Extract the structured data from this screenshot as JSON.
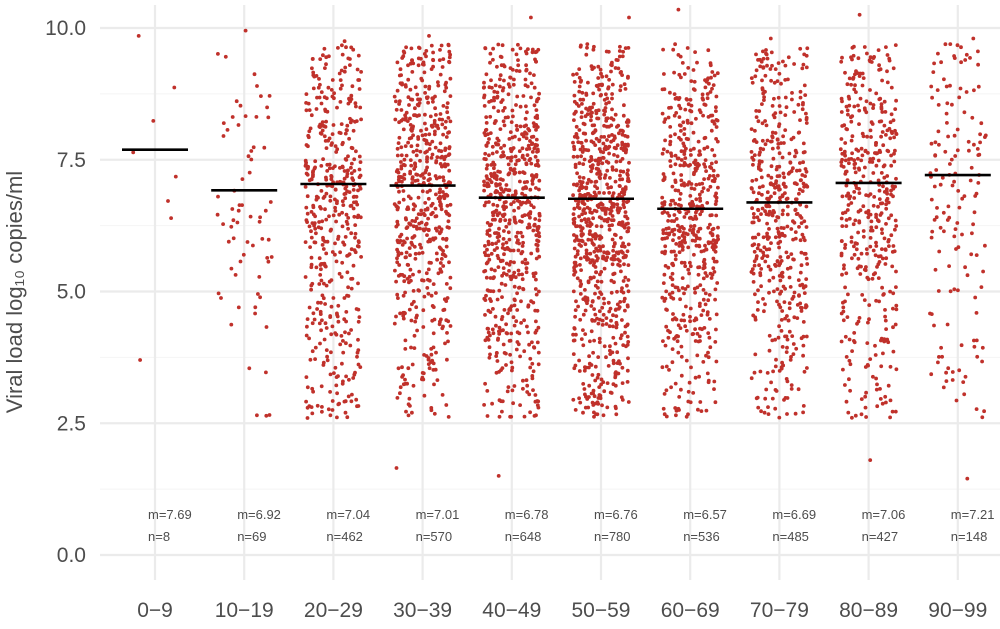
{
  "chart_data": {
    "type": "scatter",
    "ylabel": "Viral load log₁₀ copies/ml",
    "ylim": [
      0,
      10
    ],
    "y_ticks": [
      "0.0",
      "2.5",
      "5.0",
      "7.5",
      "10.0"
    ],
    "grid": true,
    "point_color": "#c0312b",
    "median_line_color": "#000000",
    "categories": [
      "0−9",
      "10−19",
      "20−29",
      "30−39",
      "40−49",
      "50−59",
      "60−69",
      "70−79",
      "80−89",
      "90−99"
    ],
    "groups": [
      {
        "label": "0−9",
        "median": 7.69,
        "n": 8,
        "m_text": "m=7.69",
        "n_text": "n=8",
        "min": 3.7,
        "max": 9.85
      },
      {
        "label": "10−19",
        "median": 6.92,
        "n": 69,
        "m_text": "m=6.92",
        "n_text": "n=69",
        "min": 2.65,
        "max": 9.95
      },
      {
        "label": "20−29",
        "median": 7.04,
        "n": 462,
        "m_text": "m=7.04",
        "n_text": "n=462",
        "min": 2.6,
        "max": 9.75
      },
      {
        "label": "30−39",
        "median": 7.01,
        "n": 570,
        "m_text": "m=7.01",
        "n_text": "n=570",
        "min": 1.65,
        "max": 9.85
      },
      {
        "label": "40−49",
        "median": 6.78,
        "n": 648,
        "m_text": "m=6.78",
        "n_text": "n=648",
        "min": 1.5,
        "max": 10.2
      },
      {
        "label": "50−59",
        "median": 6.76,
        "n": 780,
        "m_text": "m=6.76",
        "n_text": "n=780",
        "min": 2.7,
        "max": 10.2
      },
      {
        "label": "60−69",
        "median": 6.57,
        "n": 536,
        "m_text": "m=6.57",
        "n_text": "n=536",
        "min": 2.65,
        "max": 10.35
      },
      {
        "label": "70−79",
        "median": 6.69,
        "n": 485,
        "m_text": "m=6.69",
        "n_text": "n=485",
        "min": 2.7,
        "max": 9.8
      },
      {
        "label": "80−89",
        "median": 7.06,
        "n": 427,
        "m_text": "m=7.06",
        "n_text": "n=427",
        "min": 1.8,
        "max": 10.25
      },
      {
        "label": "90−99",
        "median": 7.21,
        "n": 148,
        "m_text": "m=7.21",
        "n_text": "n=148",
        "min": 1.45,
        "max": 9.8
      }
    ]
  }
}
